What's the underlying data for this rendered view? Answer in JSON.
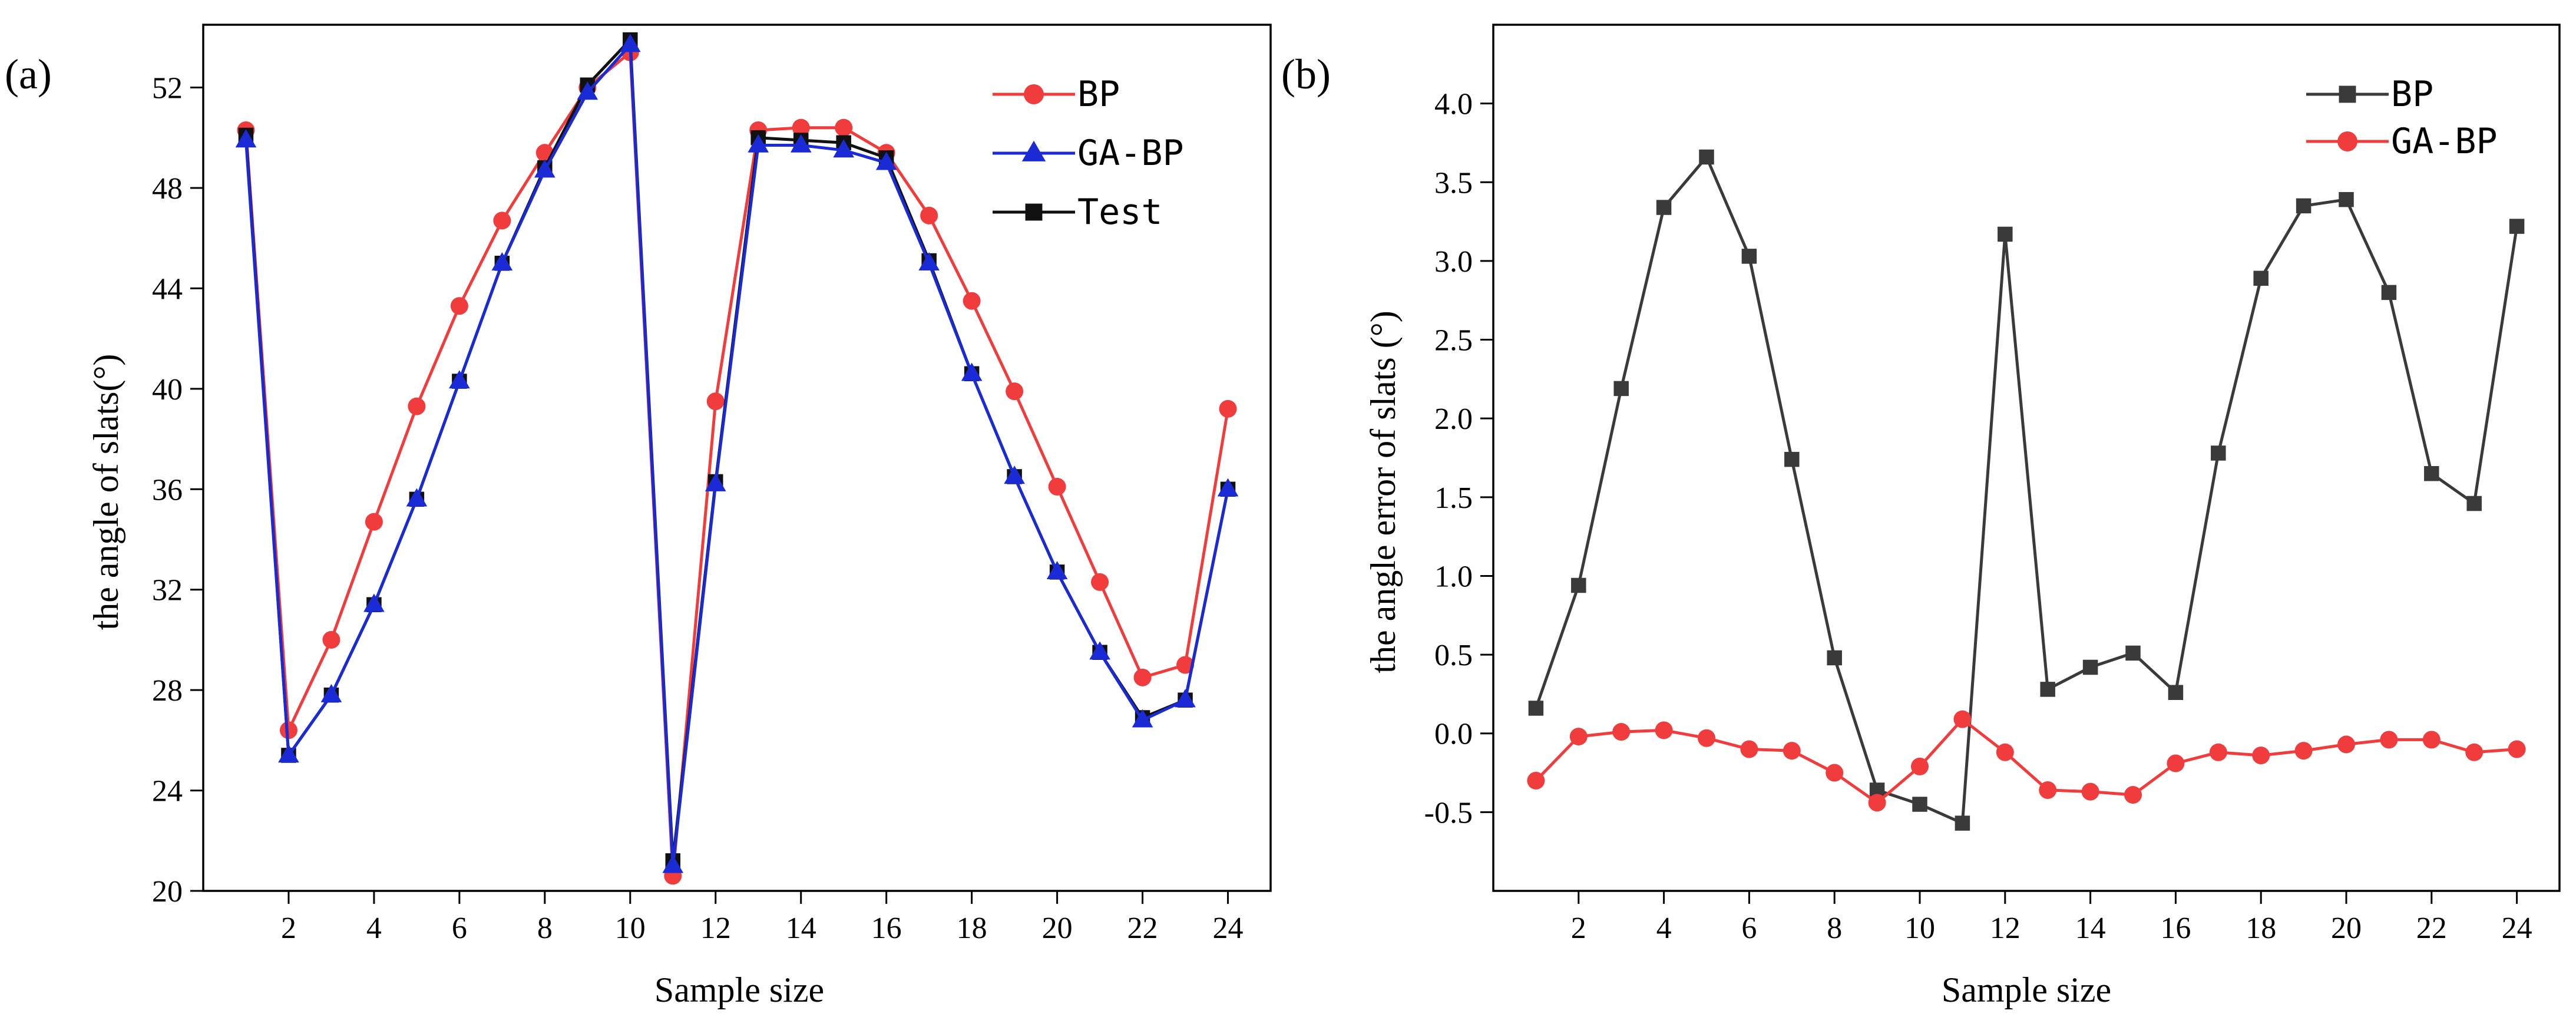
{
  "figure": {
    "panels": [
      "(a)",
      "(b)"
    ]
  },
  "chart_data": [
    {
      "type": "line",
      "panel_label": "(a)",
      "xlabel": "Sample size",
      "ylabel": "the angle of slats(°)",
      "x": [
        1,
        2,
        3,
        4,
        5,
        6,
        7,
        8,
        9,
        10,
        11,
        12,
        13,
        14,
        15,
        16,
        17,
        18,
        19,
        20,
        21,
        22,
        23,
        24
      ],
      "xlim": [
        0,
        25
      ],
      "ylim": [
        20,
        54.5
      ],
      "xticks": [
        2,
        4,
        6,
        8,
        10,
        12,
        14,
        16,
        18,
        20,
        22,
        24
      ],
      "xtick_labels": [
        "2",
        "4",
        "6",
        "8",
        "10",
        "12",
        "14",
        "16",
        "18",
        "20",
        "22",
        "24"
      ],
      "yticks": [
        20,
        24,
        28,
        32,
        36,
        40,
        44,
        48,
        52
      ],
      "ytick_labels": [
        "20",
        "24",
        "28",
        "32",
        "36",
        "40",
        "44",
        "48",
        "52"
      ],
      "legend_position": "top-right",
      "series": [
        {
          "name": "BP",
          "marker": "circle",
          "color": "#f03c3c",
          "values": [
            50.3,
            26.4,
            30.0,
            34.7,
            39.3,
            43.3,
            46.7,
            49.4,
            52.0,
            53.4,
            20.6,
            39.5,
            50.3,
            50.4,
            50.4,
            49.4,
            46.9,
            43.5,
            39.9,
            36.1,
            32.3,
            28.5,
            29.0,
            39.2
          ]
        },
        {
          "name": "GA-BP",
          "marker": "triangle",
          "color": "#1a2bd6",
          "values": [
            49.9,
            25.4,
            27.8,
            31.4,
            35.6,
            40.3,
            45.0,
            48.7,
            51.8,
            53.7,
            21.0,
            36.2,
            49.7,
            49.7,
            49.5,
            49.0,
            45.0,
            40.6,
            36.5,
            32.7,
            29.5,
            26.8,
            27.6,
            36.0
          ]
        },
        {
          "name": "Test",
          "marker": "square",
          "color": "#111111",
          "values": [
            50.1,
            25.4,
            27.8,
            31.4,
            35.6,
            40.3,
            45.0,
            48.8,
            52.1,
            53.9,
            21.2,
            36.3,
            50.0,
            49.9,
            49.8,
            49.2,
            45.1,
            40.6,
            36.5,
            32.7,
            29.5,
            26.9,
            27.6,
            36.0
          ]
        }
      ]
    },
    {
      "type": "line",
      "panel_label": "(b)",
      "xlabel": "Sample size",
      "ylabel": "the angle error of slats (°)",
      "x": [
        1,
        2,
        3,
        4,
        5,
        6,
        7,
        8,
        9,
        10,
        11,
        12,
        13,
        14,
        15,
        16,
        17,
        18,
        19,
        20,
        21,
        22,
        23,
        24
      ],
      "xlim": [
        0,
        25
      ],
      "ylim": [
        -1.0,
        4.5
      ],
      "xticks": [
        2,
        4,
        6,
        8,
        10,
        12,
        14,
        16,
        18,
        20,
        22,
        24
      ],
      "xtick_labels": [
        "2",
        "4",
        "6",
        "8",
        "10",
        "12",
        "14",
        "16",
        "18",
        "20",
        "22",
        "24"
      ],
      "yticks": [
        -0.5,
        0.0,
        0.5,
        1.0,
        1.5,
        2.0,
        2.5,
        3.0,
        3.5,
        4.0
      ],
      "ytick_labels": [
        "-0.5",
        "0.0",
        "0.5",
        "1.0",
        "1.5",
        "2.0",
        "2.5",
        "3.0",
        "3.5",
        "4.0"
      ],
      "legend_position": "top-right",
      "series": [
        {
          "name": "BP",
          "marker": "square",
          "color": "#3a3a3a",
          "values": [
            0.16,
            0.94,
            2.19,
            3.34,
            3.66,
            3.03,
            1.74,
            0.48,
            -0.36,
            -0.45,
            -0.57,
            3.17,
            0.28,
            0.42,
            0.51,
            0.26,
            1.78,
            2.89,
            3.35,
            3.39,
            2.8,
            1.65,
            1.46,
            3.22
          ]
        },
        {
          "name": "GA-BP",
          "marker": "circle",
          "color": "#f03c3c",
          "values": [
            -0.3,
            -0.02,
            0.01,
            0.02,
            -0.03,
            -0.1,
            -0.11,
            -0.25,
            -0.44,
            -0.21,
            0.09,
            -0.12,
            -0.36,
            -0.37,
            -0.39,
            -0.19,
            -0.12,
            -0.14,
            -0.11,
            -0.07,
            -0.04,
            -0.04,
            -0.12,
            -0.1
          ]
        }
      ]
    }
  ]
}
